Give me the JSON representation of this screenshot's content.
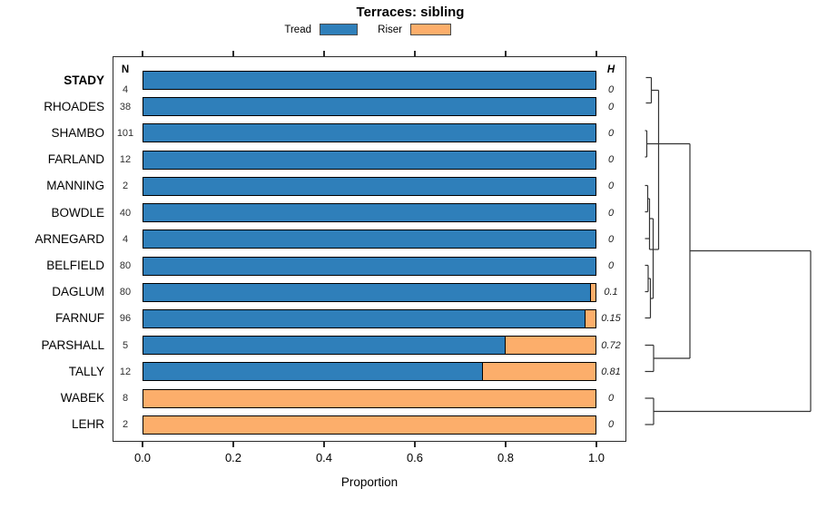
{
  "title": "Terraces: sibling",
  "legend": {
    "items": [
      {
        "label": "Tread",
        "color": "#2f7fba"
      },
      {
        "label": "Riser",
        "color": "#fcae6b"
      }
    ]
  },
  "columns": {
    "n_header": "N",
    "h_header": "H"
  },
  "x_axis": {
    "label": "Proportion",
    "ticks": [
      "0.0",
      "0.2",
      "0.4",
      "0.6",
      "0.8",
      "1.0"
    ]
  },
  "chart_data": {
    "type": "bar",
    "orientation": "horizontal",
    "stacked": true,
    "title": "Terraces: sibling",
    "xlabel": "Proportion",
    "xlim": [
      0,
      1
    ],
    "grid": false,
    "legend_position": "top",
    "categories": [
      "STADY",
      "RHOADES",
      "SHAMBO",
      "FARLAND",
      "MANNING",
      "BOWDLE",
      "ARNEGARD",
      "BELFIELD",
      "DAGLUM",
      "FARNUF",
      "PARSHALL",
      "TALLY",
      "WABEK",
      "LEHR"
    ],
    "highlight_category": "STADY",
    "n_values": [
      4,
      38,
      101,
      12,
      2,
      40,
      4,
      80,
      80,
      96,
      5,
      12,
      8,
      2
    ],
    "h_values": [
      "0",
      "0",
      "0",
      "0",
      "0",
      "0",
      "0",
      "0",
      "0.1",
      "0.15",
      "0.72",
      "0.81",
      "0",
      "0"
    ],
    "series": [
      {
        "name": "Tread",
        "color": "#2f7fba",
        "values": [
          1,
          1,
          1,
          1,
          1,
          1,
          1,
          1,
          0.987,
          0.975,
          0.8,
          0.75,
          0,
          0
        ]
      },
      {
        "name": "Riser",
        "color": "#fcae6b",
        "values": [
          0,
          0,
          0,
          0,
          0,
          0,
          0,
          0,
          0.013,
          0.025,
          0.2,
          0.25,
          1,
          1
        ]
      }
    ],
    "dendrogram_segments": [
      [
        11.5,
        25.5,
        17.5,
        25.5
      ],
      [
        17.5,
        25.5,
        17.5,
        53.5
      ],
      [
        11.5,
        53.5,
        17.5,
        53.5
      ],
      [
        17.5,
        39.5,
        25.5,
        39.5
      ],
      [
        25.5,
        39.5,
        25.5,
        215
      ],
      [
        10.5,
        84,
        12.5,
        84
      ],
      [
        12.5,
        84,
        12.5,
        113
      ],
      [
        10.5,
        113,
        12.5,
        113
      ],
      [
        12.5,
        98.5,
        60,
        98.5
      ],
      [
        10.5,
        144.5,
        13.5,
        144.5
      ],
      [
        13.5,
        144.5,
        13.5,
        173.5
      ],
      [
        10.5,
        173.5,
        13.5,
        173.5
      ],
      [
        13.5,
        159,
        15.5,
        159
      ],
      [
        15.5,
        159,
        15.5,
        215
      ],
      [
        10.5,
        203,
        15.5,
        203
      ],
      [
        15.5,
        215,
        25.5,
        215
      ],
      [
        15.5,
        181,
        19.5,
        181
      ],
      [
        19.5,
        181,
        19.5,
        269
      ],
      [
        16.5,
        269,
        19.5,
        269
      ],
      [
        10.5,
        232.5,
        14,
        232.5
      ],
      [
        14,
        232.5,
        14,
        261.5
      ],
      [
        10.5,
        261.5,
        14,
        261.5
      ],
      [
        14,
        247,
        16.5,
        247
      ],
      [
        16.5,
        247,
        16.5,
        290.5
      ],
      [
        10.5,
        290.5,
        16.5,
        290.5
      ],
      [
        10.5,
        320.5,
        20,
        320.5
      ],
      [
        20,
        320.5,
        20,
        349.5
      ],
      [
        10.5,
        349.5,
        20,
        349.5
      ],
      [
        20,
        335,
        60,
        335
      ],
      [
        60,
        98.5,
        60,
        335
      ],
      [
        60,
        216.5,
        193,
        216.5
      ],
      [
        193,
        216.5,
        193,
        393.5
      ],
      [
        10.5,
        379,
        20,
        379
      ],
      [
        20,
        379,
        20,
        408
      ],
      [
        10.5,
        408,
        20,
        408
      ],
      [
        20,
        393.5,
        193,
        393.5
      ]
    ]
  }
}
